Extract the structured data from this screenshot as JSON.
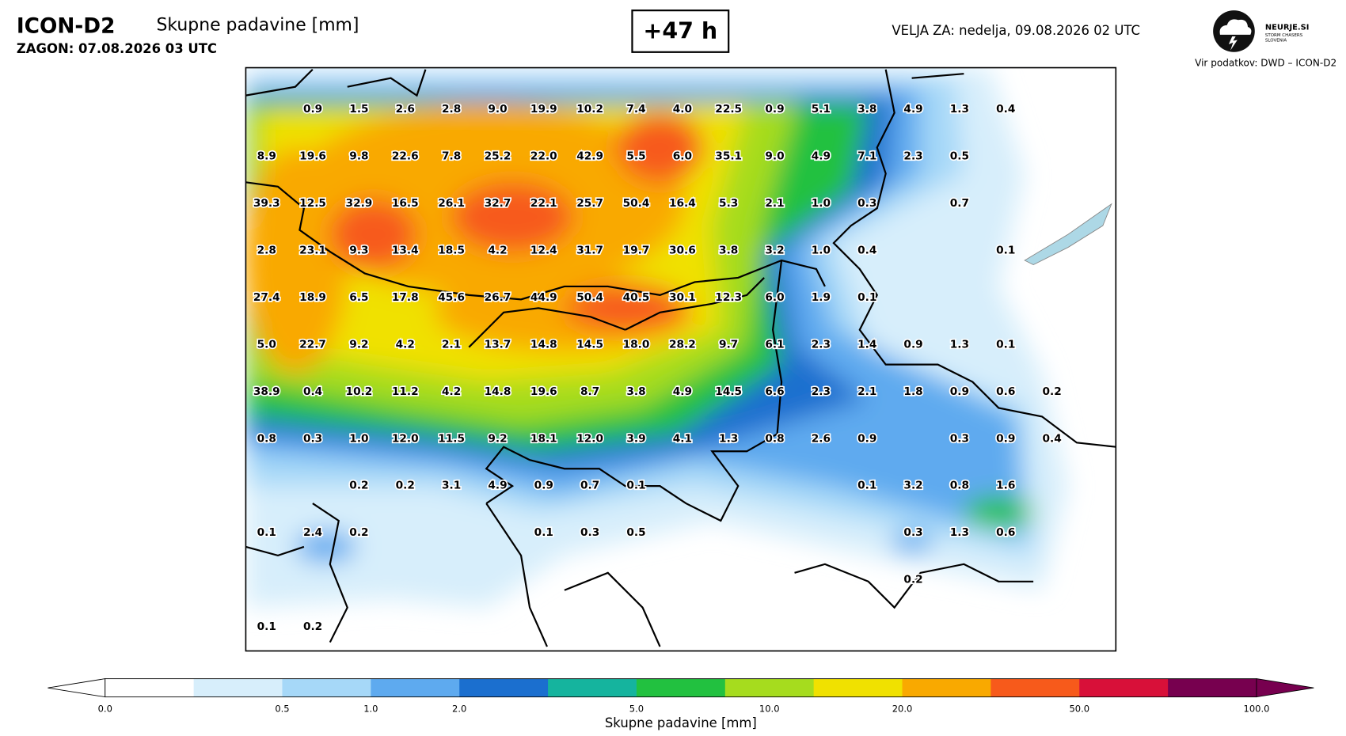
{
  "header": {
    "model": "ICON-D2",
    "parameter": "Skupne padavine [mm]",
    "run": "ZAGON: 07.08.2026 03 UTC",
    "lead": "+47 h",
    "valid": "VELJA ZA: nedelja, 09.08.2026 02 UTC",
    "logo": "NEURJE.SI",
    "logo_sub1": "STORM CHASERS",
    "logo_sub2": "SLOVENIA",
    "source": "Vir podatkov: DWD – ICON-D2"
  },
  "grid_labels": [
    [
      null,
      "0.9",
      "1.5",
      "2.6",
      "2.8",
      "9.0",
      "19.9",
      "10.2",
      "7.4",
      "4.0",
      "22.5",
      "0.9",
      "5.1",
      "3.8",
      "4.9",
      "1.3",
      "0.4",
      null
    ],
    [
      "8.9",
      "19.6",
      "9.8",
      "22.6",
      "7.8",
      "25.2",
      "22.0",
      "42.9",
      "5.5",
      "6.0",
      "35.1",
      "9.0",
      "4.9",
      "7.1",
      "2.3",
      "0.5",
      null,
      null
    ],
    [
      "39.3",
      "12.5",
      "32.9",
      "16.5",
      "26.1",
      "32.7",
      "22.1",
      "25.7",
      "50.4",
      "16.4",
      "5.3",
      "2.1",
      "1.0",
      "0.3",
      null,
      "0.7",
      null,
      null
    ],
    [
      "2.8",
      "23.1",
      "9.3",
      "13.4",
      "18.5",
      "4.2",
      "12.4",
      "31.7",
      "19.7",
      "30.6",
      "3.8",
      "3.2",
      "1.0",
      "0.4",
      null,
      null,
      "0.1",
      null
    ],
    [
      "27.4",
      "18.9",
      "6.5",
      "17.8",
      "45.6",
      "26.7",
      "44.9",
      "50.4",
      "40.5",
      "30.1",
      "12.3",
      "6.0",
      "1.9",
      "0.1",
      null,
      null,
      null,
      null
    ],
    [
      "5.0",
      "22.7",
      "9.2",
      "4.2",
      "2.1",
      "13.7",
      "14.8",
      "14.5",
      "18.0",
      "28.2",
      "9.7",
      "6.1",
      "2.3",
      "1.4",
      "0.9",
      "1.3",
      "0.1",
      null
    ],
    [
      "38.9",
      "0.4",
      "10.2",
      "11.2",
      "4.2",
      "14.8",
      "19.6",
      "8.7",
      "3.8",
      "4.9",
      "14.5",
      "6.6",
      "2.3",
      "2.1",
      "1.8",
      "0.9",
      "0.6",
      "0.2"
    ],
    [
      "0.8",
      "0.3",
      "1.0",
      "12.0",
      "11.5",
      "9.2",
      "18.1",
      "12.0",
      "3.9",
      "4.1",
      "1.3",
      "0.8",
      "2.6",
      "0.9",
      null,
      "0.3",
      "0.9",
      "0.4"
    ],
    [
      null,
      null,
      "0.2",
      "0.2",
      "3.1",
      "4.9",
      "0.9",
      "0.7",
      "0.1",
      null,
      null,
      null,
      null,
      "0.1",
      "3.2",
      "0.8",
      "1.6",
      null
    ],
    [
      "0.1",
      "2.4",
      "0.2",
      null,
      null,
      null,
      "0.1",
      "0.3",
      "0.5",
      null,
      null,
      null,
      null,
      null,
      "0.3",
      "1.3",
      "0.6",
      null
    ],
    [
      null,
      null,
      null,
      null,
      null,
      null,
      null,
      null,
      null,
      null,
      null,
      null,
      null,
      null,
      "0.2",
      null,
      null,
      null
    ],
    [
      "0.1",
      "0.2",
      null,
      null,
      null,
      null,
      null,
      null,
      null,
      null,
      null,
      null,
      null,
      null,
      null,
      null,
      null,
      null
    ]
  ],
  "colorbar": {
    "title": "Skupne padavine [mm]",
    "labels": [
      "0.0",
      "0.5",
      "1.0",
      "2.0",
      "5.0",
      "10.0",
      "20.0",
      "50.0",
      "100.0"
    ],
    "colors": [
      "#ffffff",
      "#d7eefb",
      "#a6d8f8",
      "#5eaaef",
      "#1b6fcf",
      "#15b49e",
      "#22c140",
      "#a6dc1e",
      "#f0e100",
      "#f9a900",
      "#f75a1b",
      "#d81039",
      "#77004f"
    ]
  }
}
